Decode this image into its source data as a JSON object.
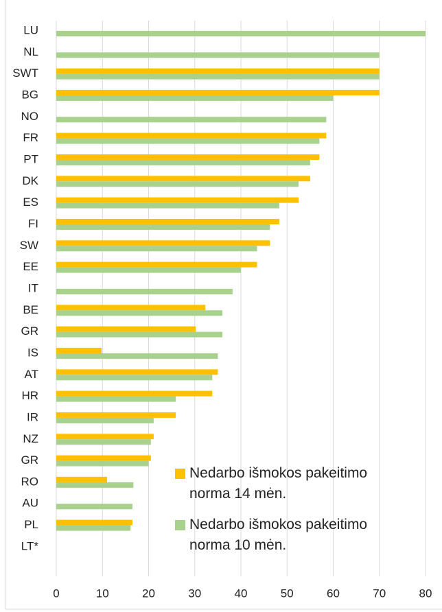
{
  "chart_data": {
    "type": "bar",
    "orientation": "horizontal",
    "categories": [
      "LU",
      "NL",
      "SWT",
      "BG",
      "NO",
      "FR",
      "PT",
      "DK",
      "ES",
      "FI",
      "SW",
      "EE",
      "IT",
      "BE",
      "GR",
      "IS",
      "AT",
      "HR",
      "IR",
      "NZ",
      "GR",
      "RO",
      "AU",
      "PL",
      "LT*"
    ],
    "series": [
      {
        "name": "Nedarbo išmokos pakeitimo norma 14 mėn.",
        "color": "#ffc000",
        "values": [
          null,
          null,
          70,
          70,
          null,
          58.5,
          57,
          55,
          52.5,
          48.3,
          46.3,
          43.5,
          null,
          32.3,
          30.2,
          9.8,
          35,
          33.8,
          25.9,
          21.1,
          20.5,
          11,
          null,
          16.5,
          null
        ]
      },
      {
        "name": "Nedarbo išmokos pakeitimo norma 10 mėn.",
        "color": "#a9d18e",
        "values": [
          80,
          70,
          70,
          60,
          58.5,
          57,
          55,
          52.5,
          48.3,
          46.3,
          43.5,
          40,
          38.2,
          36,
          36,
          35,
          33.8,
          25.9,
          21.1,
          20.5,
          20,
          16.7,
          16.5,
          16.1,
          null
        ]
      }
    ],
    "xlim": [
      0,
      80
    ],
    "xticks": [
      0,
      10,
      20,
      30,
      40,
      50,
      60,
      70,
      80
    ],
    "grid": true
  }
}
